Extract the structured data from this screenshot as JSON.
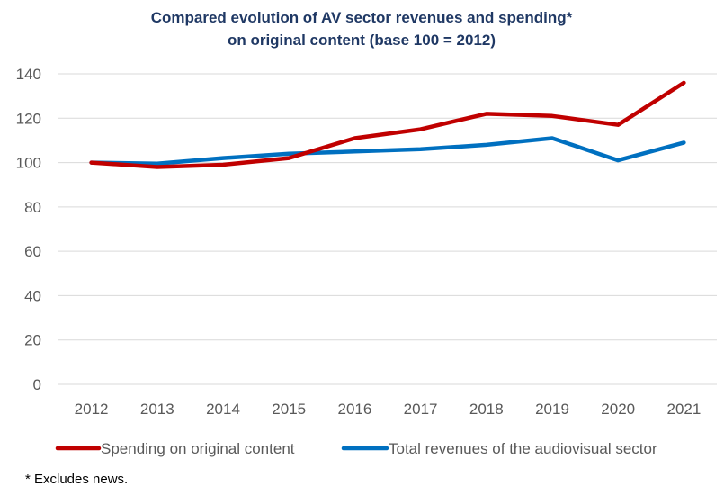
{
  "chart_data": {
    "type": "line",
    "title": "Compared evolution of AV sector revenues and spending*",
    "subtitle": "on original content (base 100 = 2012)",
    "xlabel": "",
    "ylabel": "",
    "categories": [
      "2012",
      "2013",
      "2014",
      "2015",
      "2016",
      "2017",
      "2018",
      "2019",
      "2020",
      "2021"
    ],
    "ylim": [
      0,
      140
    ],
    "yticks": [
      0,
      20,
      40,
      60,
      80,
      100,
      120,
      140
    ],
    "grid": true,
    "legend_position": "bottom",
    "series": [
      {
        "name": "Spending on original content",
        "color": "#c00000",
        "values": [
          100,
          98,
          99,
          102,
          111,
          115,
          122,
          121,
          117,
          136
        ]
      },
      {
        "name": "Total revenues of the audiovisual sector",
        "color": "#0070c0",
        "values": [
          100,
          99.5,
          102,
          104,
          105,
          106,
          108,
          111,
          101,
          109
        ]
      }
    ],
    "footnote": "* Excludes news.",
    "title_color": "#1f3864",
    "grid_color": "#d9d9d9"
  }
}
